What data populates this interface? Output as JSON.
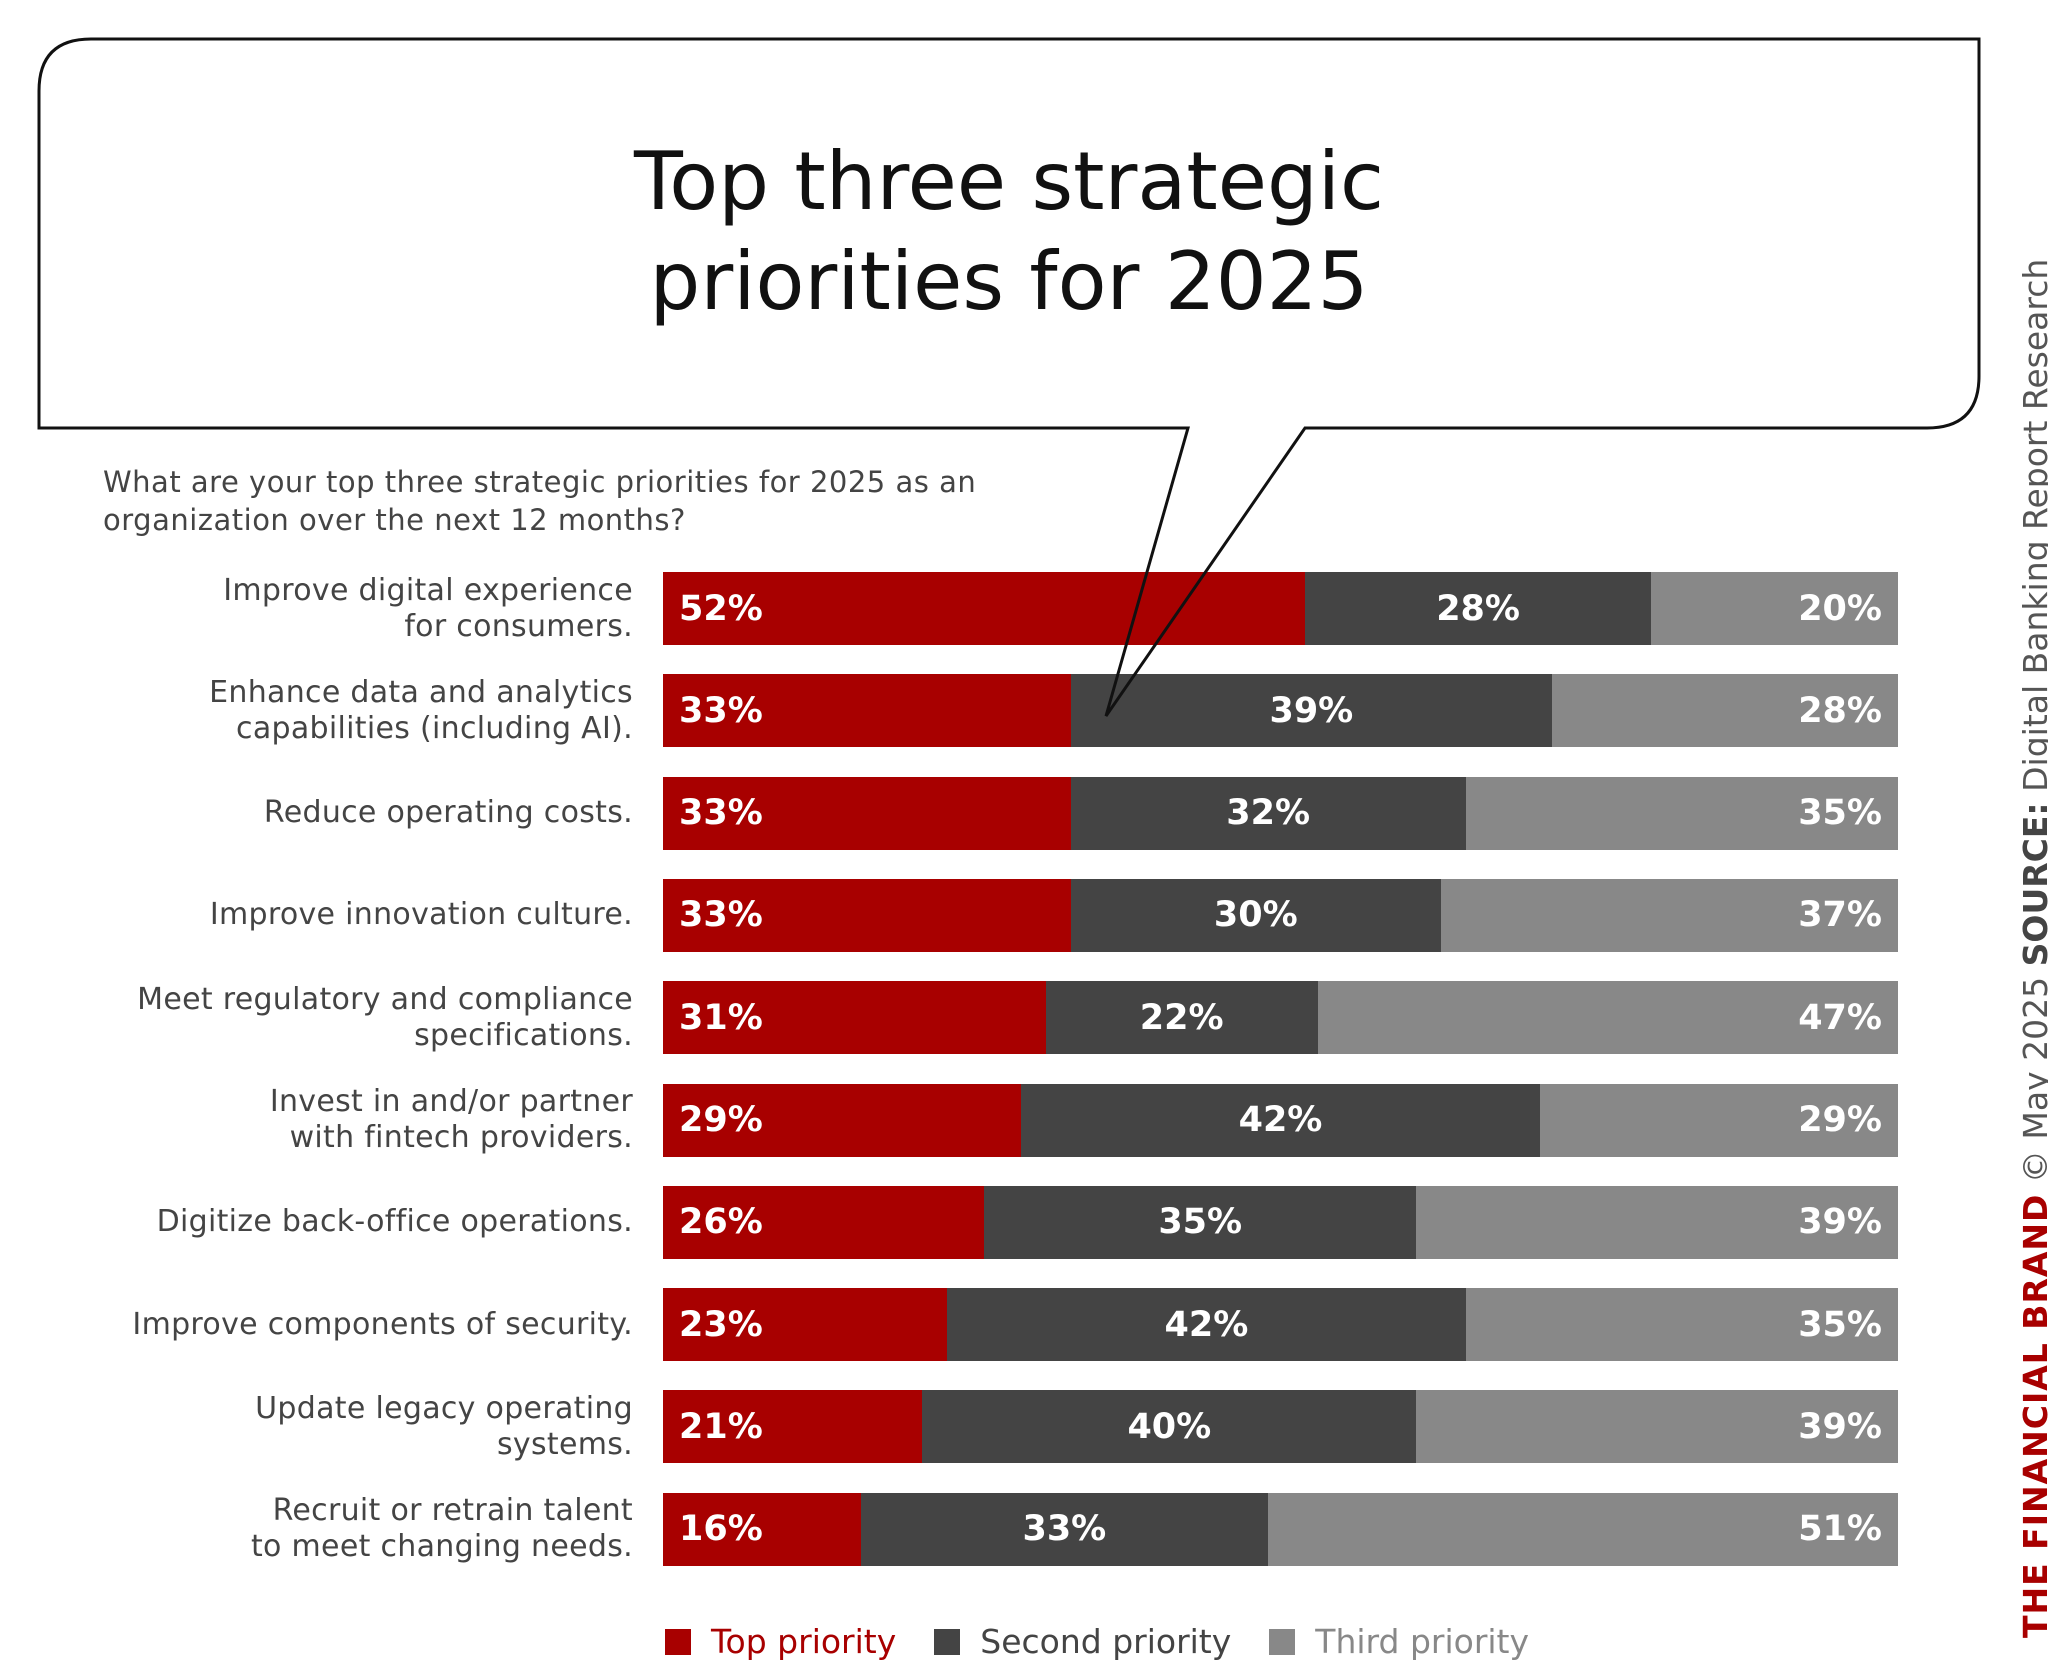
{
  "chart_data": {
    "type": "bar",
    "orientation": "horizontal",
    "stacked": true,
    "title": "Top three strategic priorities for 2025",
    "title_lines": [
      "Top three strategic",
      "priorities for 2025"
    ],
    "subtitle_lines": [
      "What are your top three strategic priorities for 2025 as an",
      "organization over the next 12 months?"
    ],
    "categories": [
      [
        "Improve digital experience",
        "for consumers."
      ],
      [
        "Enhance data and analytics",
        "capabilities (including AI)."
      ],
      [
        "Reduce operating costs."
      ],
      [
        "Improve innovation culture."
      ],
      [
        "Meet regulatory and compliance",
        "specifications."
      ],
      [
        "Invest in and/or partner",
        "with fintech providers."
      ],
      [
        "Digitize back-office operations."
      ],
      [
        "Improve components of security."
      ],
      [
        "Update legacy operating",
        "systems."
      ],
      [
        "Recruit or retrain talent",
        "to meet changing needs."
      ]
    ],
    "series": [
      {
        "name": "Top priority",
        "color": "#a80000",
        "values": [
          52,
          33,
          33,
          33,
          31,
          29,
          26,
          23,
          21,
          16
        ]
      },
      {
        "name": "Second priority",
        "color": "#444444",
        "values": [
          28,
          39,
          32,
          30,
          22,
          42,
          35,
          42,
          40,
          33
        ]
      },
      {
        "name": "Third priority",
        "color": "#888888",
        "values": [
          20,
          28,
          35,
          37,
          47,
          29,
          39,
          35,
          39,
          51
        ]
      }
    ],
    "value_suffix": "%",
    "xlim": [
      0,
      100
    ],
    "legend_position": "bottom",
    "grid": false
  },
  "footer": {
    "brand": "THE FINANCIAL BRAND",
    "date": "© May 2025",
    "source_label": "SOURCE:",
    "source": "Digital Banking Report Research"
  }
}
